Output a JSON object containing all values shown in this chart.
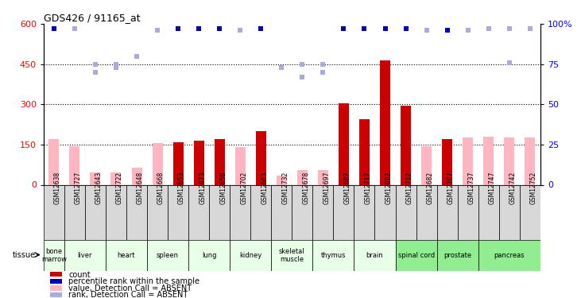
{
  "title": "GDS426 / 91165_at",
  "samples": [
    "GSM12638",
    "GSM12727",
    "GSM12643",
    "GSM12722",
    "GSM12648",
    "GSM12668",
    "GSM12653",
    "GSM12673",
    "GSM12658",
    "GSM12702",
    "GSM12663",
    "GSM12732",
    "GSM12678",
    "GSM12697",
    "GSM12687",
    "GSM12717",
    "GSM12692",
    "GSM12712",
    "GSM12682",
    "GSM12707",
    "GSM12737",
    "GSM12747",
    "GSM12742",
    "GSM12752"
  ],
  "bar_values": [
    0,
    0,
    0,
    0,
    0,
    0,
    160,
    165,
    170,
    0,
    200,
    0,
    0,
    0,
    305,
    245,
    465,
    295,
    0,
    170,
    0,
    0,
    0,
    0
  ],
  "bar_absent_values": [
    170,
    145,
    45,
    45,
    65,
    155,
    0,
    0,
    0,
    140,
    0,
    35,
    55,
    55,
    0,
    0,
    0,
    0,
    145,
    0,
    175,
    180,
    175,
    175
  ],
  "rank_present": [
    true,
    false,
    false,
    false,
    false,
    false,
    true,
    true,
    true,
    false,
    true,
    false,
    false,
    false,
    true,
    true,
    true,
    true,
    false,
    true,
    false,
    false,
    false,
    false
  ],
  "rank_values": [
    97,
    97,
    75,
    75,
    80,
    96,
    97,
    97,
    97,
    96,
    97,
    73,
    75,
    75,
    97,
    97,
    97,
    97,
    96,
    96,
    96,
    97,
    97,
    97
  ],
  "rank_absent_values": [
    0,
    0,
    70,
    73,
    0,
    0,
    0,
    0,
    0,
    0,
    0,
    0,
    67,
    70,
    0,
    0,
    0,
    0,
    0,
    0,
    0,
    0,
    76,
    0
  ],
  "tissues": [
    {
      "name": "bone\nmarrow",
      "start": 0,
      "end": 0,
      "color": "#e8ffe8"
    },
    {
      "name": "liver",
      "start": 1,
      "end": 2,
      "color": "#e8ffe8"
    },
    {
      "name": "heart",
      "start": 3,
      "end": 4,
      "color": "#e8ffe8"
    },
    {
      "name": "spleen",
      "start": 5,
      "end": 6,
      "color": "#e8ffe8"
    },
    {
      "name": "lung",
      "start": 7,
      "end": 8,
      "color": "#e8ffe8"
    },
    {
      "name": "kidney",
      "start": 9,
      "end": 10,
      "color": "#e8ffe8"
    },
    {
      "name": "skeletal\nmuscle",
      "start": 11,
      "end": 12,
      "color": "#e8ffe8"
    },
    {
      "name": "thymus",
      "start": 13,
      "end": 14,
      "color": "#e8ffe8"
    },
    {
      "name": "brain",
      "start": 15,
      "end": 16,
      "color": "#e8ffe8"
    },
    {
      "name": "spinal cord",
      "start": 17,
      "end": 18,
      "color": "#90ee90"
    },
    {
      "name": "prostate",
      "start": 19,
      "end": 20,
      "color": "#90ee90"
    },
    {
      "name": "pancreas",
      "start": 21,
      "end": 23,
      "color": "#90ee90"
    }
  ],
  "ylim_left": [
    0,
    600
  ],
  "ylim_right": [
    0,
    100
  ],
  "yticks_left": [
    0,
    150,
    300,
    450,
    600
  ],
  "yticks_right": [
    0,
    25,
    50,
    75,
    100
  ],
  "bar_color": "#cc0000",
  "bar_absent_color": "#ffb6c1",
  "rank_color": "#0000bb",
  "rank_absent_color": "#aaaadd",
  "dotted_line_y": [
    150,
    300,
    450
  ],
  "dotted_line_color": "#000000"
}
